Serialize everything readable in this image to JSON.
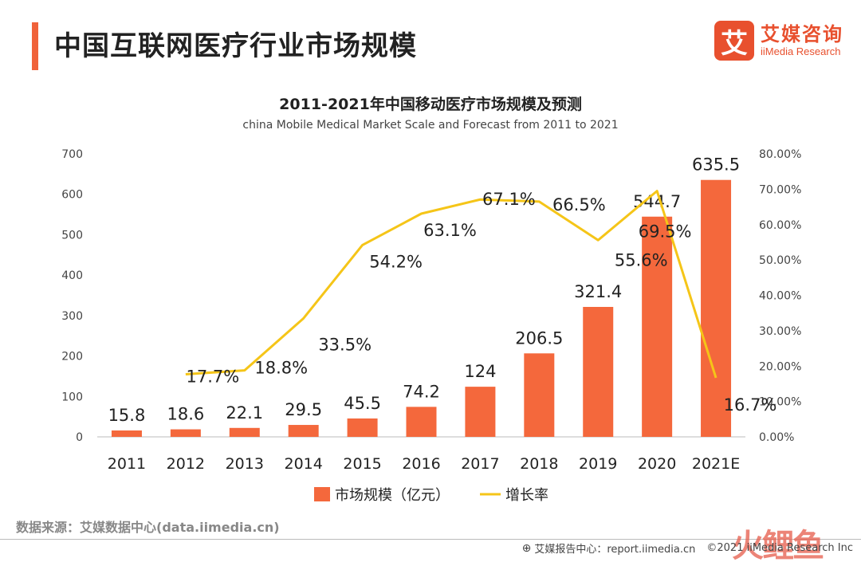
{
  "page": {
    "title": "中国互联网医疗行业市场规模",
    "logo_mark": "艾",
    "logo_cn": "艾媒咨询",
    "logo_en": "iiMedia Research",
    "source": "数据来源：艾媒数据中心(data.iimedia.cn)",
    "footer_left": "艾媒报告中心：report.iimedia.cn",
    "footer_right": "©2021 iiMedia Research Inc",
    "watermark": "火鲤鱼"
  },
  "chart_data": {
    "type": "bar",
    "title": "2011-2021年中国移动医疗市场规模及预测",
    "subtitle": "china Mobile Medical Market Scale and Forecast from 2011 to 2021",
    "categories": [
      "2011",
      "2012",
      "2013",
      "2014",
      "2015",
      "2016",
      "2017",
      "2018",
      "2019",
      "2020",
      "2021E"
    ],
    "series": [
      {
        "name": "市场规模（亿元）",
        "type": "bar",
        "axis": "left",
        "values": [
          15.8,
          18.6,
          22.1,
          29.5,
          45.5,
          74.2,
          124,
          206.5,
          321.4,
          544.7,
          635.5
        ],
        "labels": [
          "15.8",
          "18.6",
          "22.1",
          "29.5",
          "45.5",
          "74.2",
          "124",
          "206.5",
          "321.4",
          "544.7",
          "635.5"
        ],
        "color": "#f4683c"
      },
      {
        "name": "增长率",
        "type": "line",
        "axis": "right",
        "values": [
          null,
          17.7,
          18.8,
          33.5,
          54.2,
          63.1,
          67.1,
          66.5,
          55.6,
          69.5,
          16.7
        ],
        "labels": [
          null,
          "17.7%",
          "18.8%",
          "33.5%",
          "54.2%",
          "63.1%",
          "67.1%",
          "66.5%",
          "55.6%",
          "69.5%",
          "16.7%"
        ],
        "color": "#f5c518"
      }
    ],
    "ylim_left": [
      0,
      700
    ],
    "yticks_left": [
      "0",
      "100",
      "200",
      "300",
      "400",
      "500",
      "600",
      "700"
    ],
    "ylim_right": [
      0,
      80
    ],
    "yticks_right": [
      "0.00%",
      "10.00%",
      "20.00%",
      "30.00%",
      "40.00%",
      "50.00%",
      "60.00%",
      "70.00%",
      "80.00%"
    ],
    "grid": false,
    "legend_position": "bottom"
  }
}
